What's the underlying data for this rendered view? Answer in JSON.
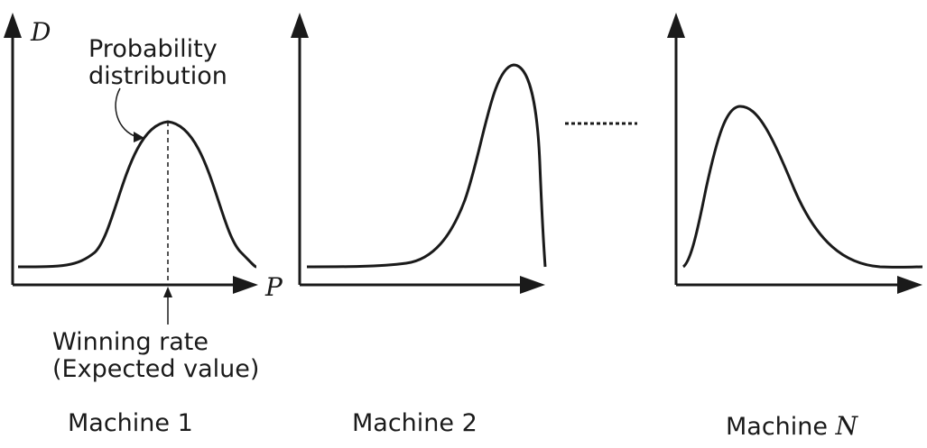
{
  "axis_labels": {
    "y": "D",
    "x": "P"
  },
  "annotations": {
    "distribution_line1": "Probability",
    "distribution_line2": "distribution",
    "winning_line1": "Winning rate",
    "winning_line2": "(Expected value)"
  },
  "machines": [
    {
      "prefix": "Machine 1",
      "suffix": ""
    },
    {
      "prefix": "Machine 2",
      "suffix": ""
    },
    {
      "prefix": "Machine ",
      "suffix": "N"
    }
  ],
  "ellipsis_glyph": "dotted-ellipsis"
}
